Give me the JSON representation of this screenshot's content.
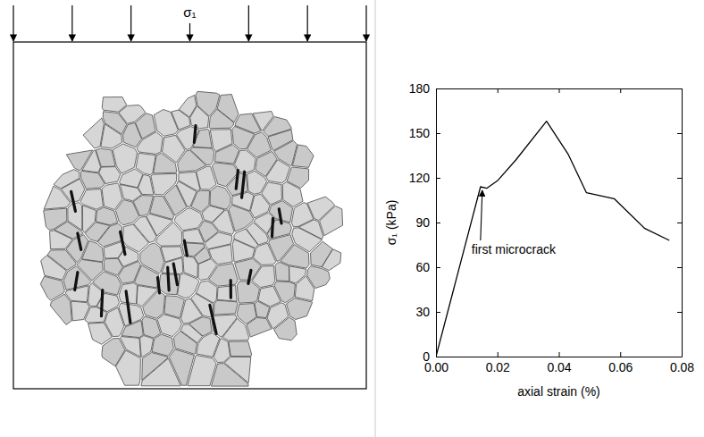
{
  "chart_data": {
    "type": "line",
    "x_label": "axial strain (%)",
    "y_label": "σ₁ (kPa)",
    "x": [
      0,
      0.0145,
      0.0165,
      0.02,
      0.026,
      0.036,
      0.043,
      0.049,
      0.058,
      0.068,
      0.076
    ],
    "values": [
      0,
      114,
      113,
      118,
      132,
      158,
      136,
      110,
      106,
      86,
      78
    ],
    "color": "#000000",
    "xlim": [
      0,
      0.08
    ],
    "xticks": [
      {
        "value": 0,
        "label": "0.00"
      },
      {
        "value": 0.02,
        "label": "0.02"
      },
      {
        "value": 0.04,
        "label": "0.04"
      },
      {
        "value": 0.06,
        "label": "0.06"
      },
      {
        "value": 0.08,
        "label": "0.08"
      }
    ],
    "ylim": [
      0,
      180
    ],
    "yticks": [
      0,
      30,
      60,
      90,
      120,
      150,
      180
    ],
    "grid": false,
    "annotations": [
      {
        "text": "first microcrack",
        "x": 0.0145,
        "y": 114
      }
    ]
  },
  "diagram": {
    "load_label": "σ₁"
  }
}
